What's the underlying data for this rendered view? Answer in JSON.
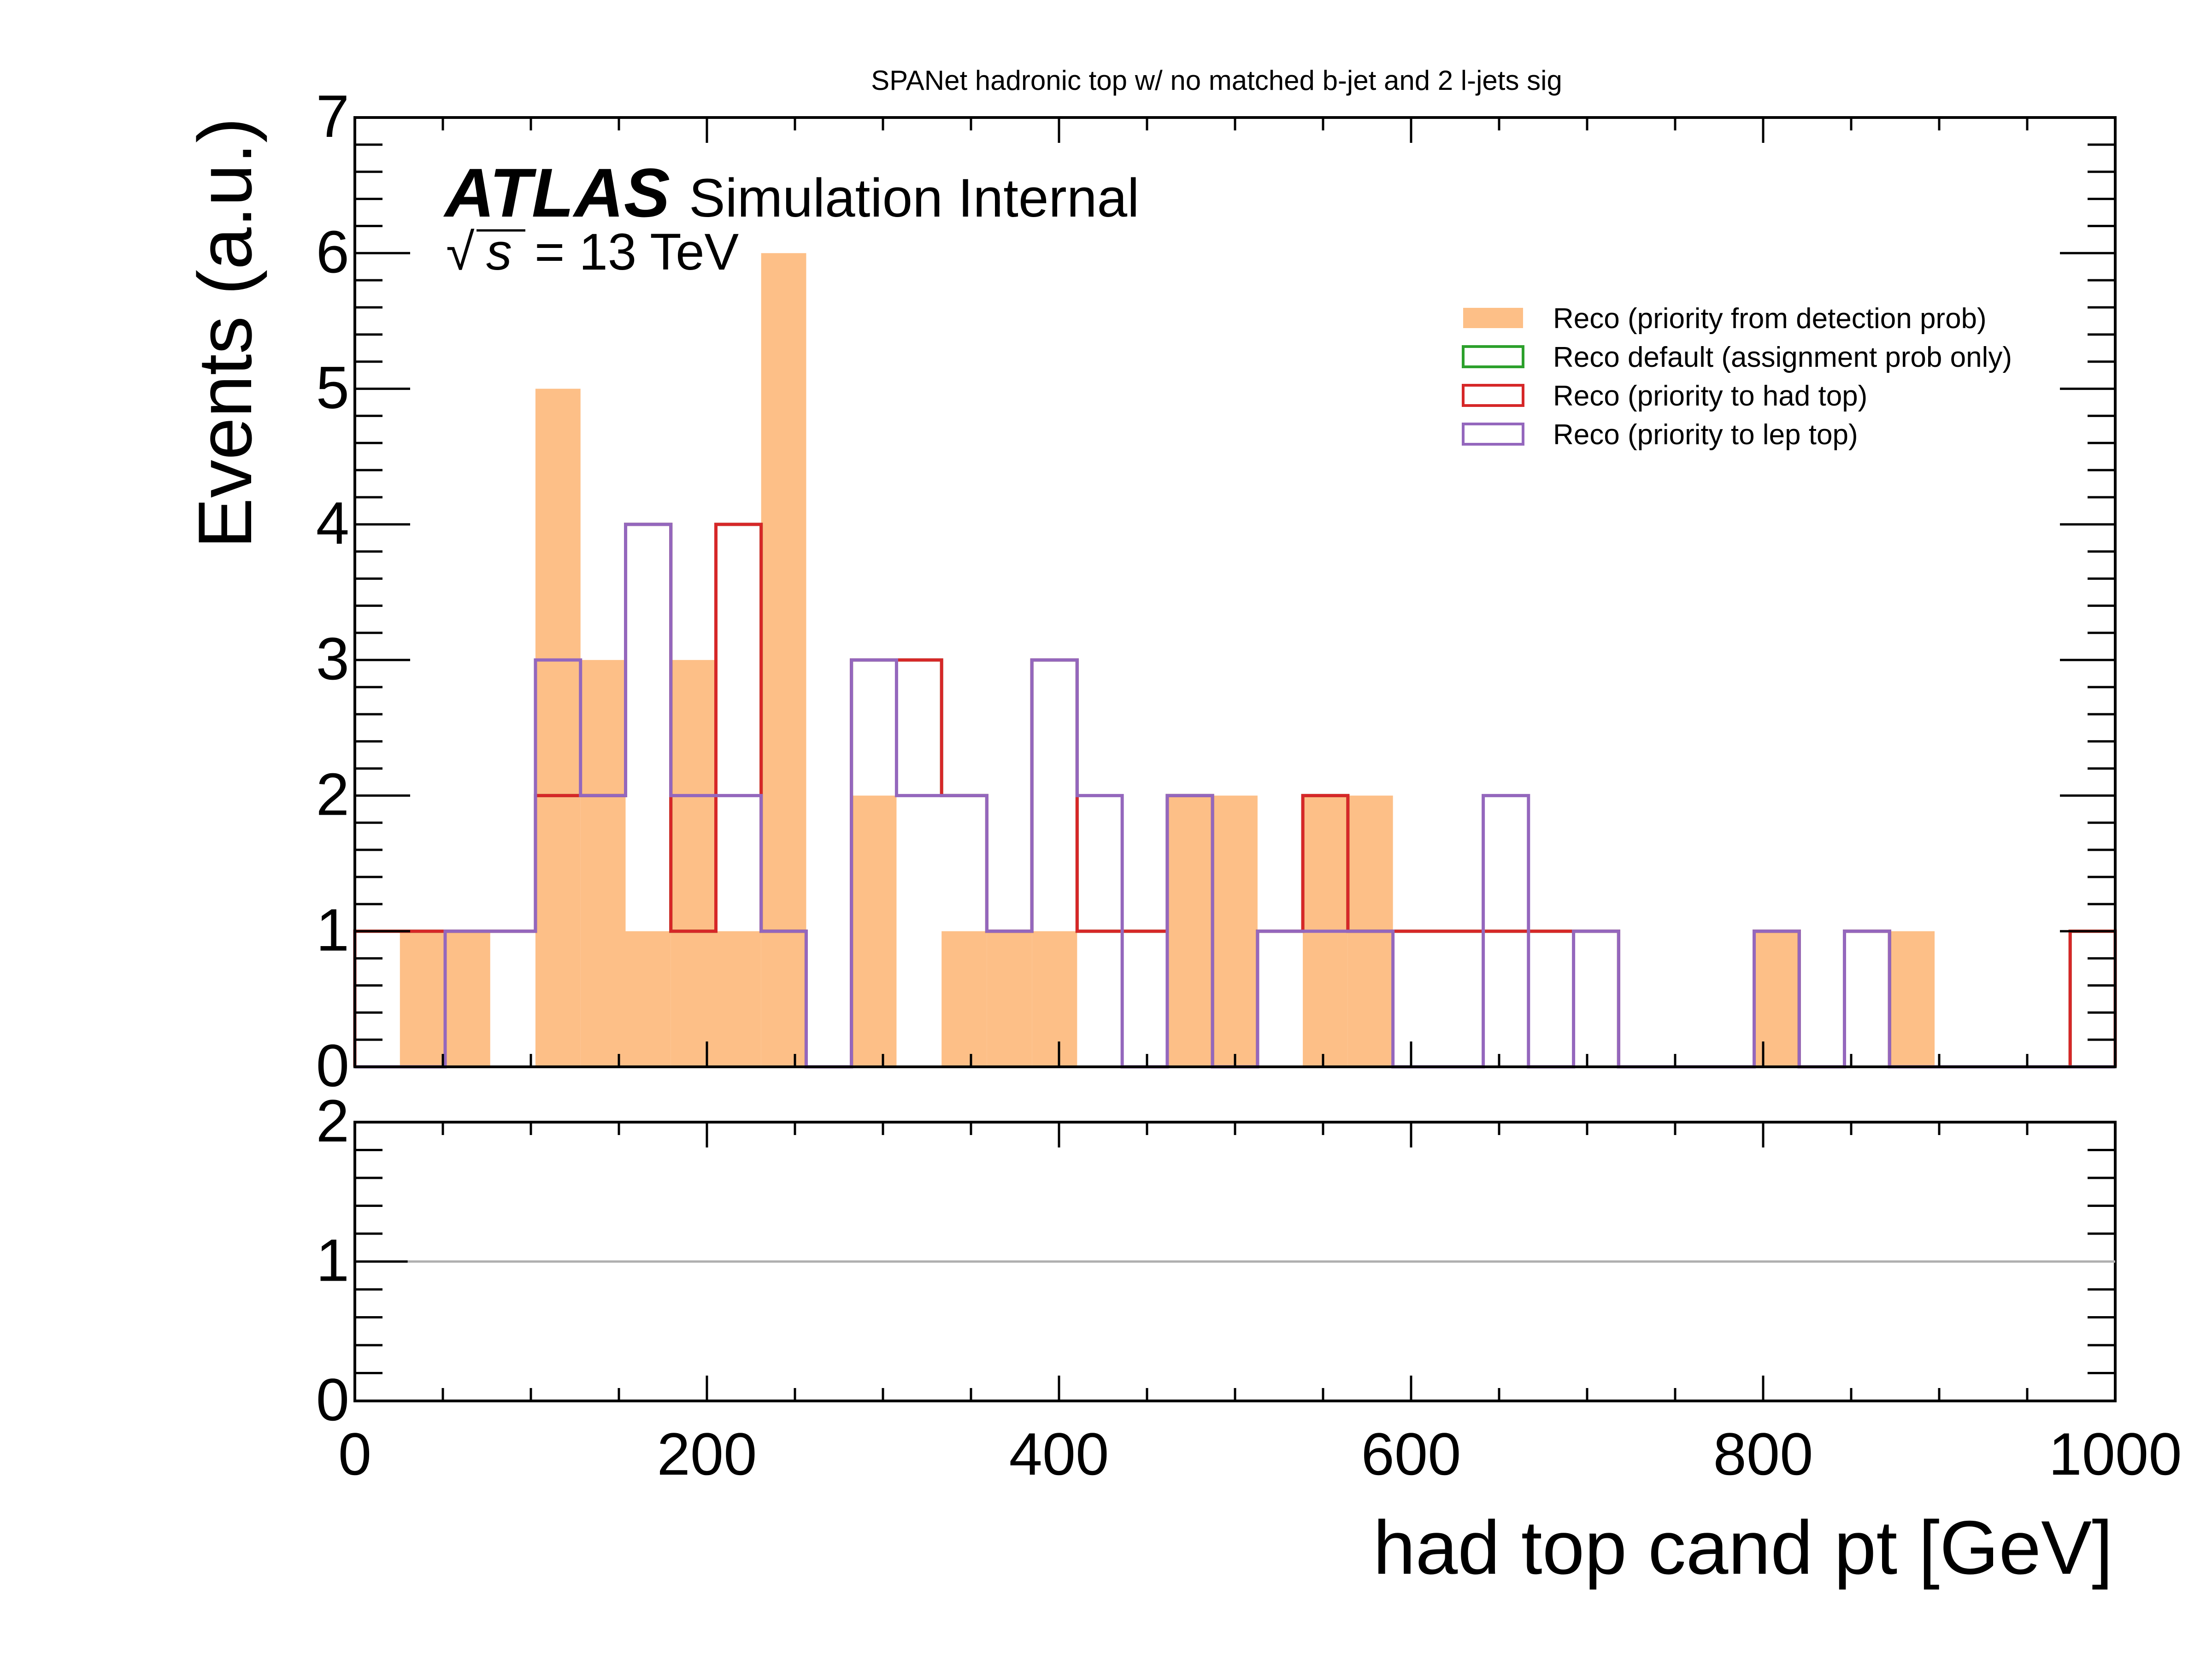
{
  "chart_data": [
    {
      "type": "histogram",
      "title": "SPANet hadronic top w/ no matched b-jet and 2 l-jets sig",
      "ylabel": "Events (a.u.)",
      "xlim": [
        0,
        1000
      ],
      "ylim": [
        0,
        7
      ],
      "xticks": [
        "0",
        "200",
        "400",
        "600",
        "800",
        "1000"
      ],
      "yticks": [
        "0",
        "1",
        "2",
        "3",
        "4",
        "5",
        "6",
        "7"
      ],
      "atlas_label": "ATLAS",
      "atlas_sublabel": "Simulation Internal",
      "energy_label": "= 13 TeV",
      "sqrt_symbol": "√",
      "s_symbol": "s",
      "legend_position": "upper-right",
      "bin_edges": [
        0,
        25.6,
        51.3,
        76.9,
        102.6,
        128.2,
        153.8,
        179.5,
        205.1,
        230.8,
        256.4,
        282.1,
        307.7,
        333.3,
        359,
        384.6,
        410.3,
        435.9,
        461.5,
        487.2,
        512.8,
        538.5,
        564.1,
        589.7,
        615.4,
        641,
        666.7,
        692.3,
        717.9,
        743.6,
        769.2,
        794.9,
        820.5,
        846.2,
        871.8,
        897.4,
        923.1,
        948.7,
        974.4,
        1000
      ],
      "series": [
        {
          "name": "Reco (priority from detection prob)",
          "style": "filled",
          "color": "#fdbf87",
          "values": [
            0,
            1,
            1,
            0,
            5,
            3,
            1,
            3,
            1,
            6,
            0,
            2,
            0,
            1,
            1,
            1,
            0,
            0,
            2,
            2,
            0,
            2,
            2,
            0,
            0,
            0,
            0,
            0,
            0,
            0,
            0,
            1,
            0,
            0,
            1,
            0,
            0,
            0,
            0
          ]
        },
        {
          "name": "Reco default (assignment prob only)",
          "style": "step",
          "color": "#2ca02c",
          "values": [
            1,
            1,
            1,
            1,
            2,
            2,
            4,
            1,
            4,
            1,
            0,
            3,
            3,
            2,
            1,
            3,
            1,
            1,
            2,
            0,
            1,
            2,
            1,
            1,
            1,
            1,
            1,
            1,
            0,
            0,
            0,
            1,
            0,
            1,
            0,
            0,
            0,
            0,
            1
          ]
        },
        {
          "name": "Reco (priority to had top)",
          "style": "step",
          "color": "#d62728",
          "values": [
            1,
            1,
            1,
            1,
            2,
            2,
            4,
            1,
            4,
            1,
            0,
            3,
            3,
            2,
            1,
            3,
            1,
            1,
            2,
            0,
            1,
            2,
            1,
            1,
            1,
            1,
            1,
            1,
            0,
            0,
            0,
            1,
            0,
            1,
            0,
            0,
            0,
            0,
            1
          ]
        },
        {
          "name": "Reco (priority to lep top)",
          "style": "step",
          "color": "#9467bd",
          "values": [
            0,
            0,
            1,
            1,
            3,
            2,
            4,
            2,
            2,
            1,
            0,
            3,
            2,
            2,
            1,
            3,
            2,
            0,
            2,
            0,
            1,
            1,
            1,
            0,
            0,
            2,
            0,
            1,
            0,
            0,
            0,
            1,
            0,
            1,
            0,
            0,
            0,
            0,
            0
          ]
        }
      ]
    },
    {
      "type": "line",
      "panel": "ratio",
      "xlabel": "had top cand pt [GeV]",
      "xlim": [
        0,
        1000
      ],
      "ylim": [
        0,
        2
      ],
      "yticks": [
        "0",
        "1",
        "2"
      ],
      "reference_line": {
        "y": 1,
        "x": [
          30,
          1000
        ],
        "color": "#b0b0b0"
      }
    }
  ]
}
